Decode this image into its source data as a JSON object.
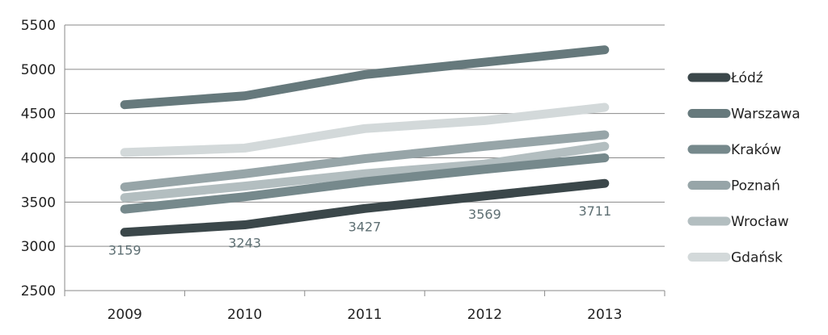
{
  "chart_data": {
    "type": "line",
    "categories": [
      "2009",
      "2010",
      "2011",
      "2012",
      "2013"
    ],
    "ylim": [
      2500,
      5500
    ],
    "yticks": [
      "5500",
      "5000",
      "4500",
      "4000",
      "3500",
      "3000",
      "2500"
    ],
    "grid": "horizontal",
    "legend": "right",
    "series": [
      {
        "name": "Łódź",
        "color": "#3b474a",
        "values": [
          3159,
          3243,
          3427,
          3569,
          3711
        ],
        "labels": [
          "3159",
          "3243",
          "3427",
          "3569",
          "3711"
        ]
      },
      {
        "name": "Warszawa",
        "color": "#66797c",
        "values": [
          4600,
          4700,
          4940,
          5080,
          5220
        ]
      },
      {
        "name": "Kraków",
        "color": "#76898c",
        "values": [
          3420,
          3560,
          3730,
          3870,
          4000
        ]
      },
      {
        "name": "Poznań",
        "color": "#97a5a8",
        "values": [
          3670,
          3820,
          3990,
          4130,
          4260
        ]
      },
      {
        "name": "Wrocław",
        "color": "#b3bec0",
        "values": [
          3550,
          3680,
          3820,
          3930,
          4130
        ]
      },
      {
        "name": "Gdańsk",
        "color": "#d3d9da",
        "values": [
          4060,
          4110,
          4330,
          4420,
          4570
        ]
      }
    ]
  }
}
